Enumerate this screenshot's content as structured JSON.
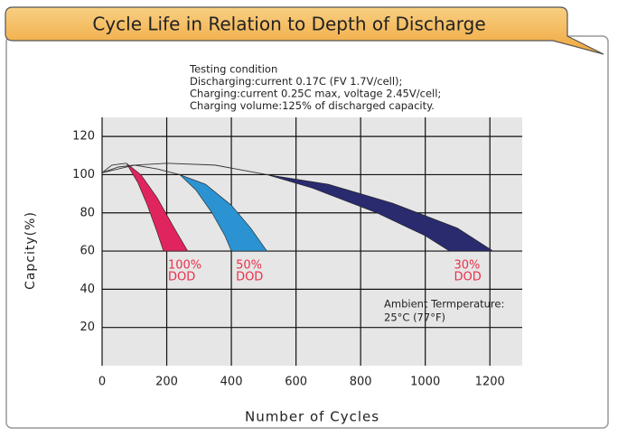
{
  "chart_data": {
    "type": "band",
    "title": "Cycle Life in Relation to Depth of Discharge",
    "notes": [
      "Testing condition",
      "Discharging:current 0.17C (FV 1.7V/cell);",
      "Charging:current 0.25C max, voltage 2.45V/cell;",
      "Charging volume:125% of discharged capacity."
    ],
    "annotation": [
      "Ambient Termperature:",
      "25°C (77°F)"
    ],
    "xlabel": "Number of Cycles",
    "ylabel": "Capcity(%)",
    "xlim": [
      0,
      1300
    ],
    "ylim": [
      0,
      130
    ],
    "xticks": [
      0,
      200,
      400,
      600,
      800,
      1000,
      1200
    ],
    "yticks": [
      20,
      40,
      60,
      80,
      100,
      120
    ],
    "grid": true,
    "series": [
      {
        "name": [
          "100%",
          "DOD"
        ],
        "color": "#e0245e",
        "label_color": "#e8304a",
        "lead": {
          "x": [
            0,
            30,
            75
          ],
          "y": [
            101,
            105,
            106
          ]
        },
        "upper": {
          "x": [
            75,
            120,
            170,
            220,
            265
          ],
          "y": [
            106,
            100,
            88,
            73,
            60
          ]
        },
        "lower": {
          "x": [
            75,
            110,
            140,
            170,
            190
          ],
          "y": [
            106,
            96,
            84,
            70,
            60
          ]
        }
      },
      {
        "name": [
          "50%",
          "DOD"
        ],
        "color": "#2b93d1",
        "label_color": "#e8304a",
        "lead": {
          "x": [
            0,
            50,
            100,
            170,
            240
          ],
          "y": [
            101,
            104,
            105,
            103,
            100
          ]
        },
        "upper": {
          "x": [
            240,
            320,
            400,
            460,
            510
          ],
          "y": [
            100,
            95,
            84,
            72,
            60
          ]
        },
        "lower": {
          "x": [
            240,
            290,
            340,
            380,
            400
          ],
          "y": [
            100,
            92,
            80,
            68,
            60
          ]
        }
      },
      {
        "name": [
          "30%",
          "DOD"
        ],
        "color": "#2a2a6e",
        "label_color": "#e8304a",
        "lead": {
          "x": [
            0,
            100,
            200,
            350,
            510
          ],
          "y": [
            101,
            105,
            106,
            105,
            100
          ]
        },
        "upper": {
          "x": [
            510,
            700,
            900,
            1100,
            1210
          ],
          "y": [
            100,
            95,
            85,
            72,
            60
          ]
        },
        "lower": {
          "x": [
            510,
            650,
            850,
            1000,
            1075
          ],
          "y": [
            100,
            93,
            80,
            68,
            60
          ]
        }
      }
    ]
  }
}
